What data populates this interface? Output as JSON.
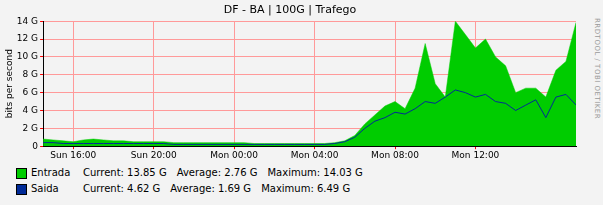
{
  "chart_data": {
    "type": "line",
    "title": "DF - BA | 100G | Trafego",
    "y_label": "bits per second",
    "watermark": "RRDTOOL / TOBI OETIKER",
    "x": [
      14.5,
      15,
      15.5,
      16,
      16.5,
      17,
      17.5,
      18,
      18.5,
      19,
      19.5,
      20,
      20.5,
      21,
      21.5,
      22,
      22.5,
      23,
      23.5,
      24,
      24.5,
      25,
      25.5,
      26,
      26.5,
      27,
      27.5,
      28,
      28.5,
      29,
      29.5,
      30,
      30.5,
      31,
      31.5,
      32,
      32.5,
      33,
      33.5,
      34,
      34.5,
      35,
      35.5,
      36,
      36.5,
      37,
      37.5,
      38,
      38.5,
      39,
      39.5,
      40,
      40.5,
      41
    ],
    "xlim": [
      14.5,
      41
    ],
    "xticks": [
      {
        "value": 16,
        "label": "Sun 16:00"
      },
      {
        "value": 20,
        "label": "Sun 20:00"
      },
      {
        "value": 24,
        "label": "Mon 00:00"
      },
      {
        "value": 28,
        "label": "Mon 04:00"
      },
      {
        "value": 32,
        "label": "Mon 08:00"
      },
      {
        "value": 36,
        "label": "Mon 12:00"
      }
    ],
    "ylim": [
      0,
      14
    ],
    "yticks": [
      0,
      {
        "value": 2,
        "label": "2 G"
      },
      {
        "value": 4,
        "label": "4 G"
      },
      {
        "value": 6,
        "label": "6 G"
      },
      {
        "value": 8,
        "label": "8 G"
      },
      {
        "value": 10,
        "label": "10 G"
      },
      {
        "value": 12,
        "label": "12 G"
      },
      {
        "value": 14,
        "label": "14 G"
      }
    ],
    "grid": true,
    "legend": "bottom",
    "series": [
      {
        "name": "Entrada",
        "color": "#00cc00",
        "type": "area",
        "values": [
          0.8,
          0.7,
          0.6,
          0.5,
          0.7,
          0.8,
          0.7,
          0.6,
          0.6,
          0.5,
          0.5,
          0.5,
          0.5,
          0.4,
          0.4,
          0.4,
          0.4,
          0.4,
          0.4,
          0.4,
          0.4,
          0.3,
          0.3,
          0.3,
          0.3,
          0.3,
          0.3,
          0.3,
          0.3,
          0.4,
          0.6,
          1.2,
          2.5,
          3.5,
          4.5,
          5.0,
          4.2,
          6.5,
          11.5,
          7.0,
          5.5,
          14.0,
          12.5,
          11.0,
          12.0,
          10.0,
          9.0,
          6.0,
          6.5,
          6.5,
          5.5,
          8.5,
          9.5,
          13.85
        ],
        "stats": [
          {
            "label": "Current:",
            "text": "13.85 G"
          },
          {
            "label": "Average:",
            "text": "2.76 G"
          },
          {
            "label": "Maximum:",
            "text": "14.03 G"
          }
        ]
      },
      {
        "name": "Saida",
        "color": "#002a97",
        "type": "line",
        "values": [
          0.4,
          0.4,
          0.3,
          0.3,
          0.3,
          0.3,
          0.3,
          0.3,
          0.3,
          0.3,
          0.3,
          0.3,
          0.3,
          0.2,
          0.2,
          0.2,
          0.2,
          0.2,
          0.2,
          0.2,
          0.2,
          0.2,
          0.2,
          0.2,
          0.2,
          0.2,
          0.2,
          0.2,
          0.2,
          0.3,
          0.5,
          1.0,
          2.0,
          2.8,
          3.2,
          3.8,
          3.6,
          4.2,
          5.0,
          4.8,
          5.5,
          6.3,
          6.0,
          5.5,
          5.8,
          5.0,
          4.8,
          4.0,
          4.6,
          5.2,
          3.2,
          5.5,
          5.8,
          4.62
        ],
        "stats": [
          {
            "label": "Current:",
            "text": "4.62 G"
          },
          {
            "label": "Average:",
            "text": "1.69 G"
          },
          {
            "label": "Maximum:",
            "text": "6.49 G"
          }
        ]
      }
    ]
  }
}
